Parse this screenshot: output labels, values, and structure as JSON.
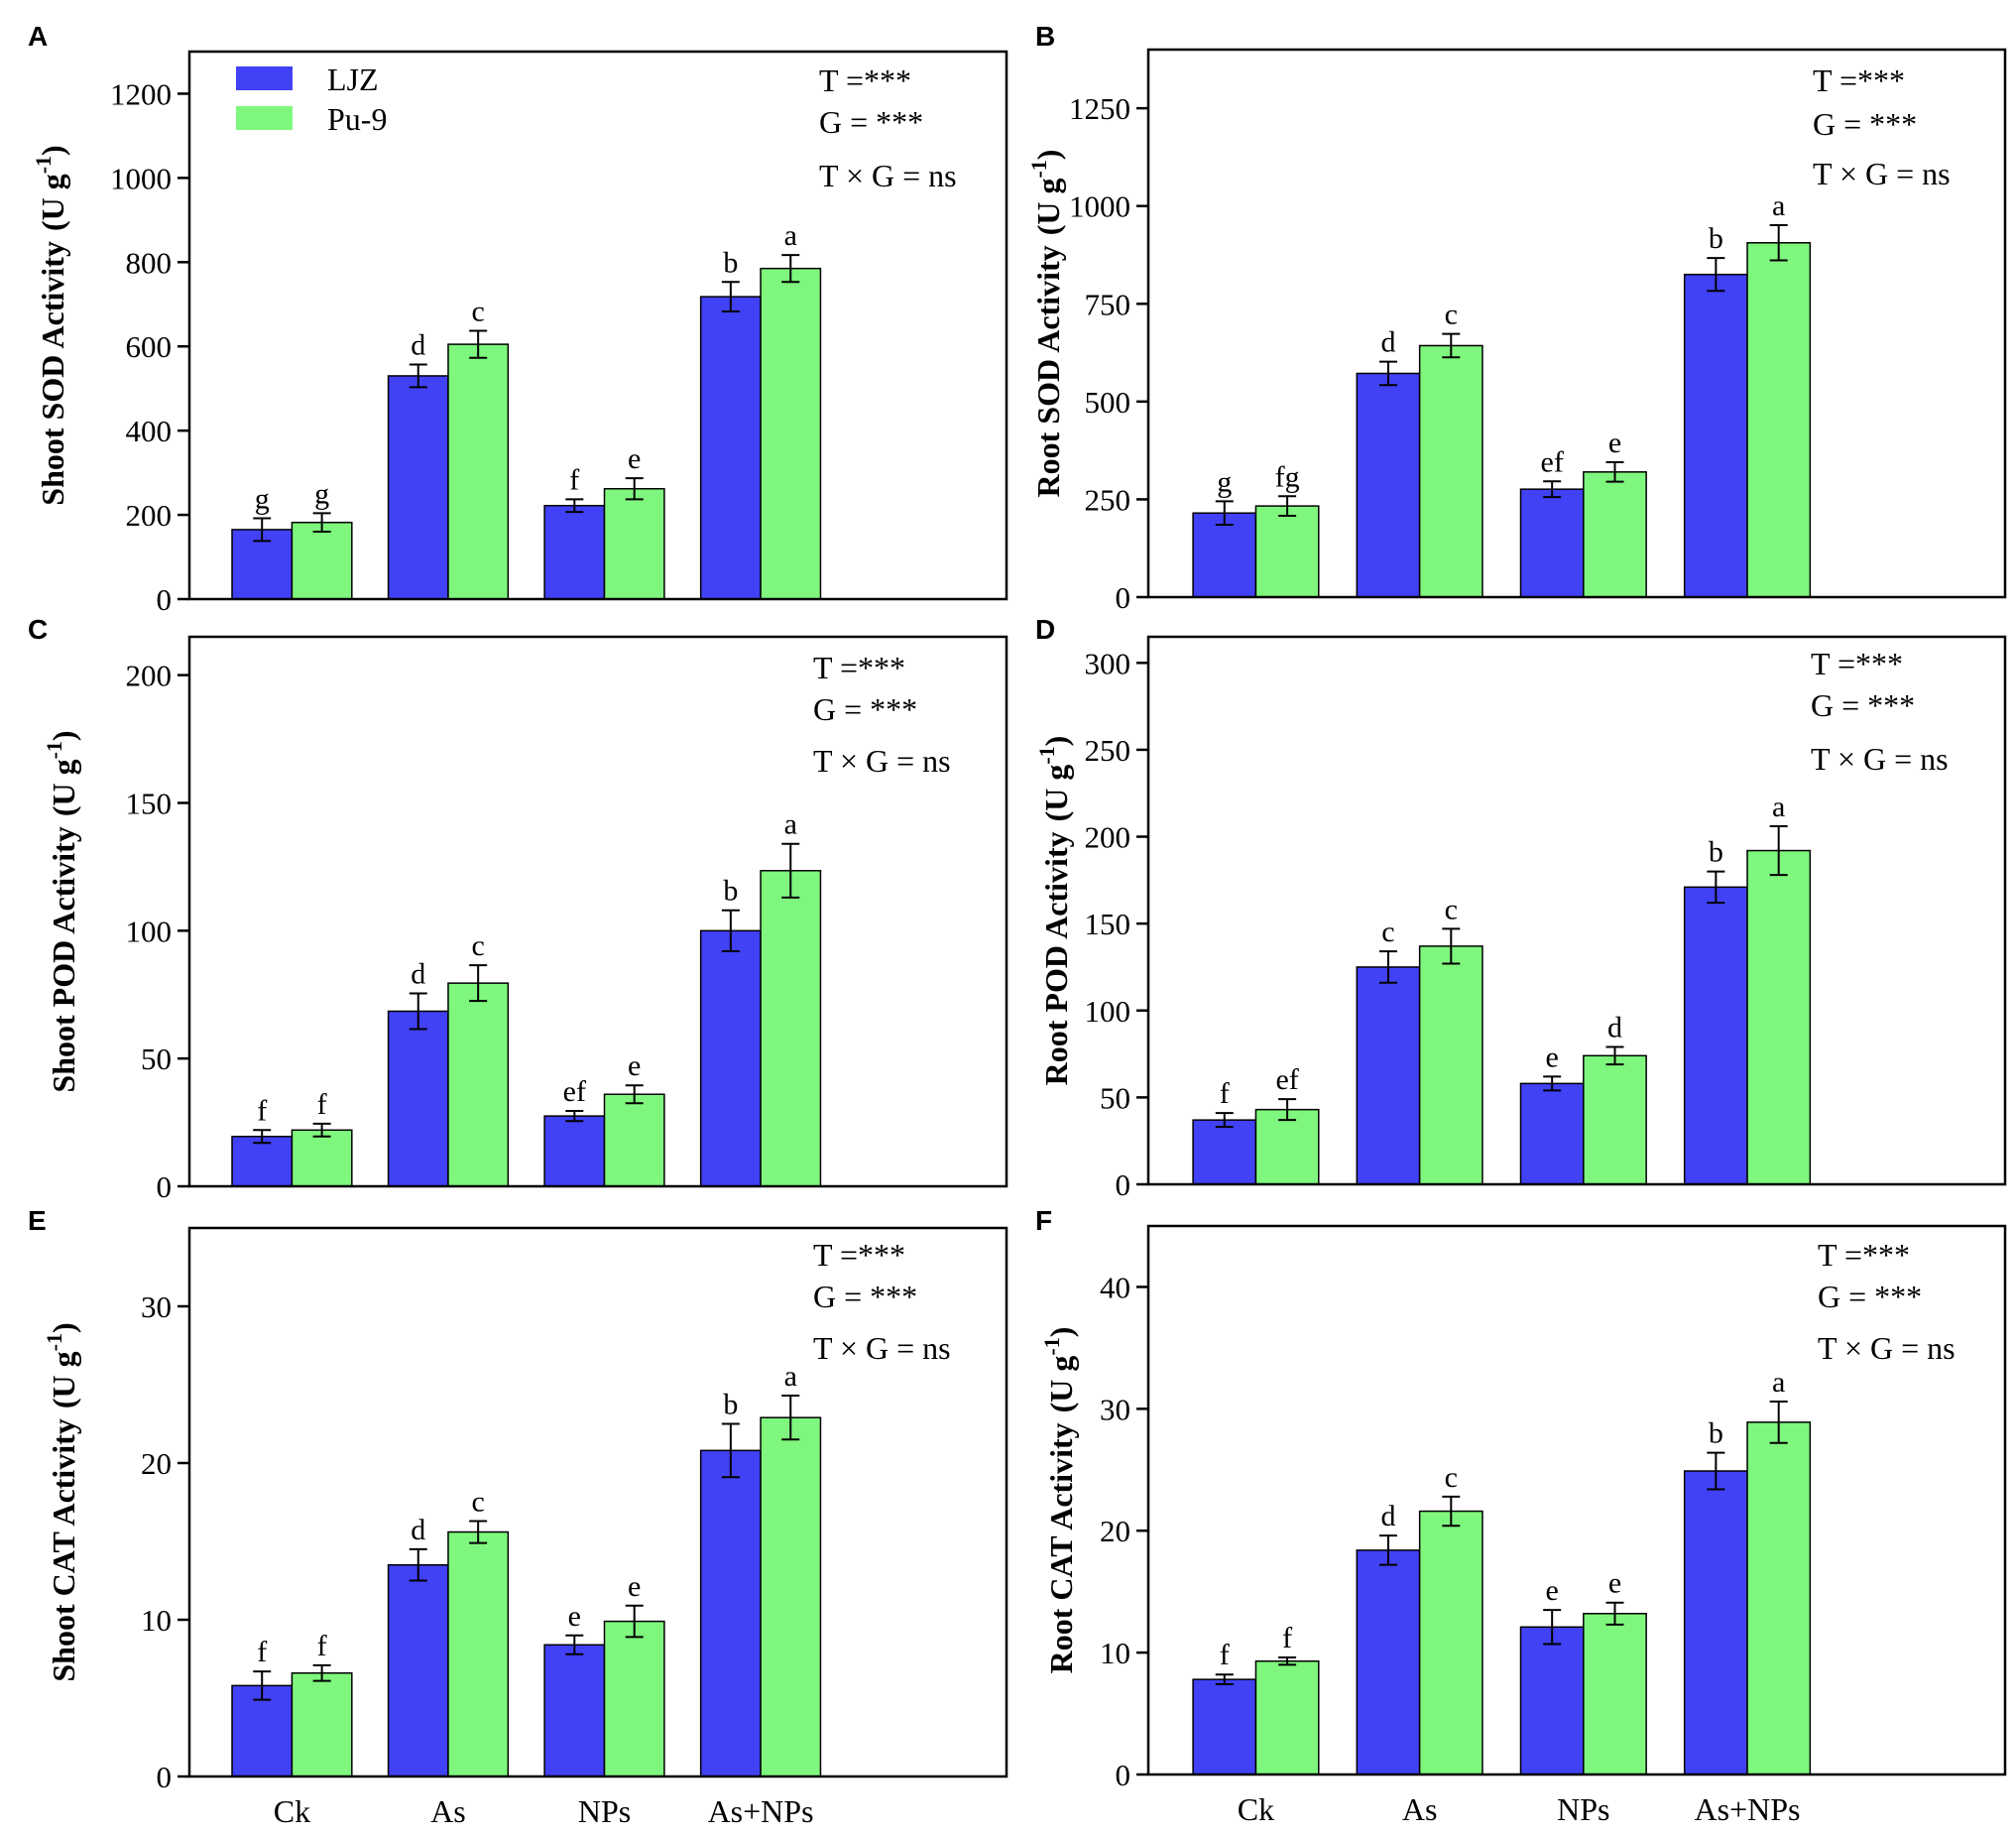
{
  "colors": {
    "ljz": "#4141f5",
    "pu9": "#7ff77e",
    "axis": "#000000"
  },
  "legend": [
    {
      "name": "LJZ"
    },
    {
      "name": "Pu-9"
    }
  ],
  "chart_data": [
    {
      "panel": "A",
      "type": "bar",
      "ylabel_main": "Shoot SOD Activity",
      "ylabel_unit": "(U g",
      "ylabel_sup": "-1",
      "ylabel_close": ")",
      "categories": [
        "Ck",
        "As",
        "NPs",
        "As+NPs"
      ],
      "ylim": [
        0,
        1300
      ],
      "yticks": [
        0,
        200,
        400,
        600,
        800,
        1000,
        1200
      ],
      "series": [
        {
          "name": "LJZ",
          "values": [
            165,
            530,
            222,
            718
          ],
          "errors": [
            27,
            27,
            15,
            35
          ],
          "letters": [
            "g",
            "d",
            "f",
            "b"
          ]
        },
        {
          "name": "Pu-9",
          "values": [
            182,
            605,
            262,
            785
          ],
          "errors": [
            22,
            32,
            25,
            32
          ],
          "letters": [
            "g",
            "c",
            "e",
            "a"
          ]
        }
      ],
      "stats": [
        "T =***",
        "G = ***",
        "T × G = ns"
      ]
    },
    {
      "panel": "B",
      "type": "bar",
      "ylabel_main": "Root SOD Activity",
      "ylabel_unit": "(U g",
      "ylabel_sup": "-1",
      "ylabel_close": ")",
      "categories": [
        "Ck",
        "As",
        "NPs",
        "As+NPs"
      ],
      "ylim": [
        0,
        1400
      ],
      "yticks": [
        0,
        250,
        500,
        750,
        1000,
        1250
      ],
      "series": [
        {
          "name": "LJZ",
          "values": [
            215,
            572,
            276,
            825
          ],
          "errors": [
            30,
            30,
            20,
            42
          ],
          "letters": [
            "g",
            "d",
            "ef",
            "b"
          ]
        },
        {
          "name": "Pu-9",
          "values": [
            233,
            643,
            320,
            906
          ],
          "errors": [
            25,
            30,
            25,
            45
          ],
          "letters": [
            "fg",
            "c",
            "e",
            "a"
          ]
        }
      ],
      "stats": [
        "T =***",
        "G = ***",
        "T × G = ns"
      ]
    },
    {
      "panel": "C",
      "type": "bar",
      "ylabel_main": "Shoot POD Activity",
      "ylabel_unit": "(U g",
      "ylabel_sup": "-1",
      "ylabel_close": ")",
      "categories": [
        "Ck",
        "As",
        "NPs",
        "As+NPs"
      ],
      "ylim": [
        0,
        215
      ],
      "yticks": [
        0,
        50,
        100,
        150,
        200
      ],
      "series": [
        {
          "name": "LJZ",
          "values": [
            19.5,
            68.5,
            27.5,
            100
          ],
          "errors": [
            2.5,
            7,
            2,
            8
          ],
          "letters": [
            "f",
            "d",
            "ef",
            "b"
          ]
        },
        {
          "name": "Pu-9",
          "values": [
            22,
            79.5,
            36,
            123.5
          ],
          "errors": [
            2.5,
            7,
            3.5,
            10.5
          ],
          "letters": [
            "f",
            "c",
            "e",
            "a"
          ]
        }
      ],
      "stats": [
        "T =***",
        "G = ***",
        "T × G = ns"
      ]
    },
    {
      "panel": "D",
      "type": "bar",
      "ylabel_main": "Root POD Activity",
      "ylabel_unit": "(U g",
      "ylabel_sup": "-1",
      "ylabel_close": ")",
      "categories": [
        "Ck",
        "As",
        "NPs",
        "As+NPs"
      ],
      "ylim": [
        0,
        315
      ],
      "yticks": [
        0,
        50,
        100,
        150,
        200,
        250,
        300
      ],
      "series": [
        {
          "name": "LJZ",
          "values": [
            37,
            125,
            58,
            171
          ],
          "errors": [
            4,
            9,
            4,
            9
          ],
          "letters": [
            "f",
            "c",
            "e",
            "b"
          ]
        },
        {
          "name": "Pu-9",
          "values": [
            43,
            137,
            74,
            192
          ],
          "errors": [
            6,
            10,
            5,
            14
          ],
          "letters": [
            "ef",
            "c",
            "d",
            "a"
          ]
        }
      ],
      "stats": [
        "T =***",
        "G = ***",
        "T × G = ns"
      ]
    },
    {
      "panel": "E",
      "type": "bar",
      "ylabel_main": "Shoot CAT Activity",
      "ylabel_unit": "(U g",
      "ylabel_sup": "-1",
      "ylabel_close": ")",
      "categories": [
        "Ck",
        "As",
        "NPs",
        "As+NPs"
      ],
      "ylim": [
        0,
        35
      ],
      "yticks": [
        0,
        10,
        20,
        30
      ],
      "series": [
        {
          "name": "LJZ",
          "values": [
            5.8,
            13.5,
            8.4,
            20.8
          ],
          "errors": [
            0.9,
            1,
            0.6,
            1.7
          ],
          "letters": [
            "f",
            "d",
            "e",
            "b"
          ]
        },
        {
          "name": "Pu-9",
          "values": [
            6.6,
            15.6,
            9.9,
            22.9
          ],
          "errors": [
            0.5,
            0.7,
            1,
            1.4
          ],
          "letters": [
            "f",
            "c",
            "e",
            "a"
          ]
        }
      ],
      "stats": [
        "T =***",
        "G = ***",
        "T × G = ns"
      ]
    },
    {
      "panel": "F",
      "type": "bar",
      "ylabel_main": "Root CAT Activity",
      "ylabel_unit": "(U g",
      "ylabel_sup": "-1",
      "ylabel_close": ")",
      "categories": [
        "Ck",
        "As",
        "NPs",
        "As+NPs"
      ],
      "ylim": [
        0,
        45
      ],
      "yticks": [
        0,
        10,
        20,
        30,
        40
      ],
      "series": [
        {
          "name": "LJZ",
          "values": [
            7.8,
            18.4,
            12.1,
            24.9
          ],
          "errors": [
            0.4,
            1.2,
            1.4,
            1.5
          ],
          "letters": [
            "f",
            "d",
            "e",
            "b"
          ]
        },
        {
          "name": "Pu-9",
          "values": [
            9.3,
            21.6,
            13.2,
            28.9
          ],
          "errors": [
            0.3,
            1.2,
            0.9,
            1.7
          ],
          "letters": [
            "f",
            "c",
            "e",
            "a"
          ]
        }
      ],
      "stats": [
        "T =***",
        "G = ***",
        "T × G = ns"
      ]
    }
  ]
}
